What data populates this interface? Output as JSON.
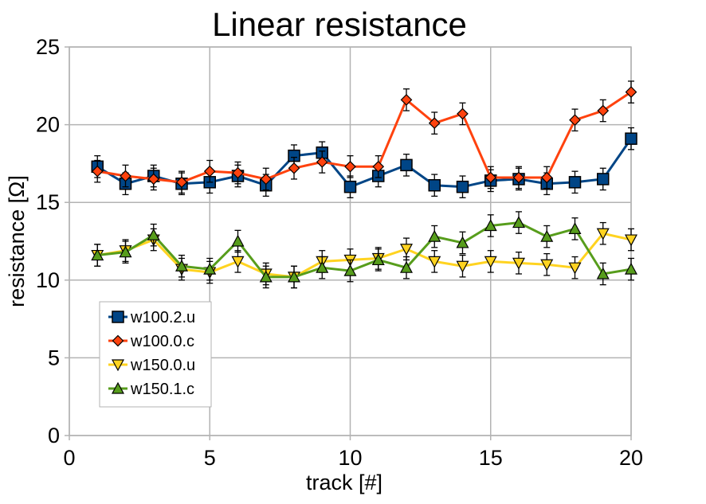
{
  "chart_data": {
    "type": "line",
    "title": "Linear resistance",
    "xlabel": "track [#]",
    "ylabel": "resistance [Ω]",
    "xlim": [
      0,
      20
    ],
    "ylim": [
      0,
      25
    ],
    "xticks": [
      0,
      5,
      10,
      15,
      20
    ],
    "yticks": [
      0,
      5,
      10,
      15,
      20,
      25
    ],
    "grid": true,
    "legend_position": "bottom-left",
    "x": [
      1,
      2,
      3,
      4,
      5,
      6,
      7,
      8,
      9,
      10,
      11,
      12,
      13,
      14,
      15,
      16,
      17,
      18,
      19,
      20
    ],
    "error_bar": 0.7,
    "series": [
      {
        "name": "w100.2.u",
        "color": "#004586",
        "marker": "square",
        "values": [
          17.3,
          16.2,
          16.7,
          16.2,
          16.3,
          16.7,
          16.1,
          18.0,
          18.2,
          16.0,
          16.7,
          17.4,
          16.1,
          16.0,
          16.4,
          16.5,
          16.2,
          16.3,
          16.5,
          19.1
        ]
      },
      {
        "name": "w100.0.c",
        "color": "#ff420e",
        "marker": "diamond",
        "values": [
          17.0,
          16.7,
          16.5,
          16.3,
          17.0,
          16.9,
          16.5,
          17.2,
          17.6,
          17.3,
          17.3,
          21.6,
          20.1,
          20.7,
          16.6,
          16.6,
          16.6,
          20.3,
          20.9,
          22.1
        ]
      },
      {
        "name": "w150.0.u",
        "color": "#ffd320",
        "marker": "triangle-down",
        "values": [
          11.6,
          11.9,
          12.6,
          10.7,
          10.5,
          11.2,
          10.4,
          10.2,
          11.2,
          11.3,
          11.4,
          12.0,
          11.2,
          10.9,
          11.2,
          11.1,
          11.0,
          10.8,
          13.0,
          12.6
        ]
      },
      {
        "name": "w150.1.c",
        "color": "#579d1c",
        "marker": "triangle-up",
        "values": [
          11.6,
          11.8,
          12.9,
          10.9,
          10.7,
          12.5,
          10.2,
          10.2,
          10.8,
          10.6,
          11.3,
          10.8,
          12.8,
          12.4,
          13.5,
          13.7,
          12.8,
          13.3,
          10.4,
          10.7
        ]
      }
    ]
  }
}
